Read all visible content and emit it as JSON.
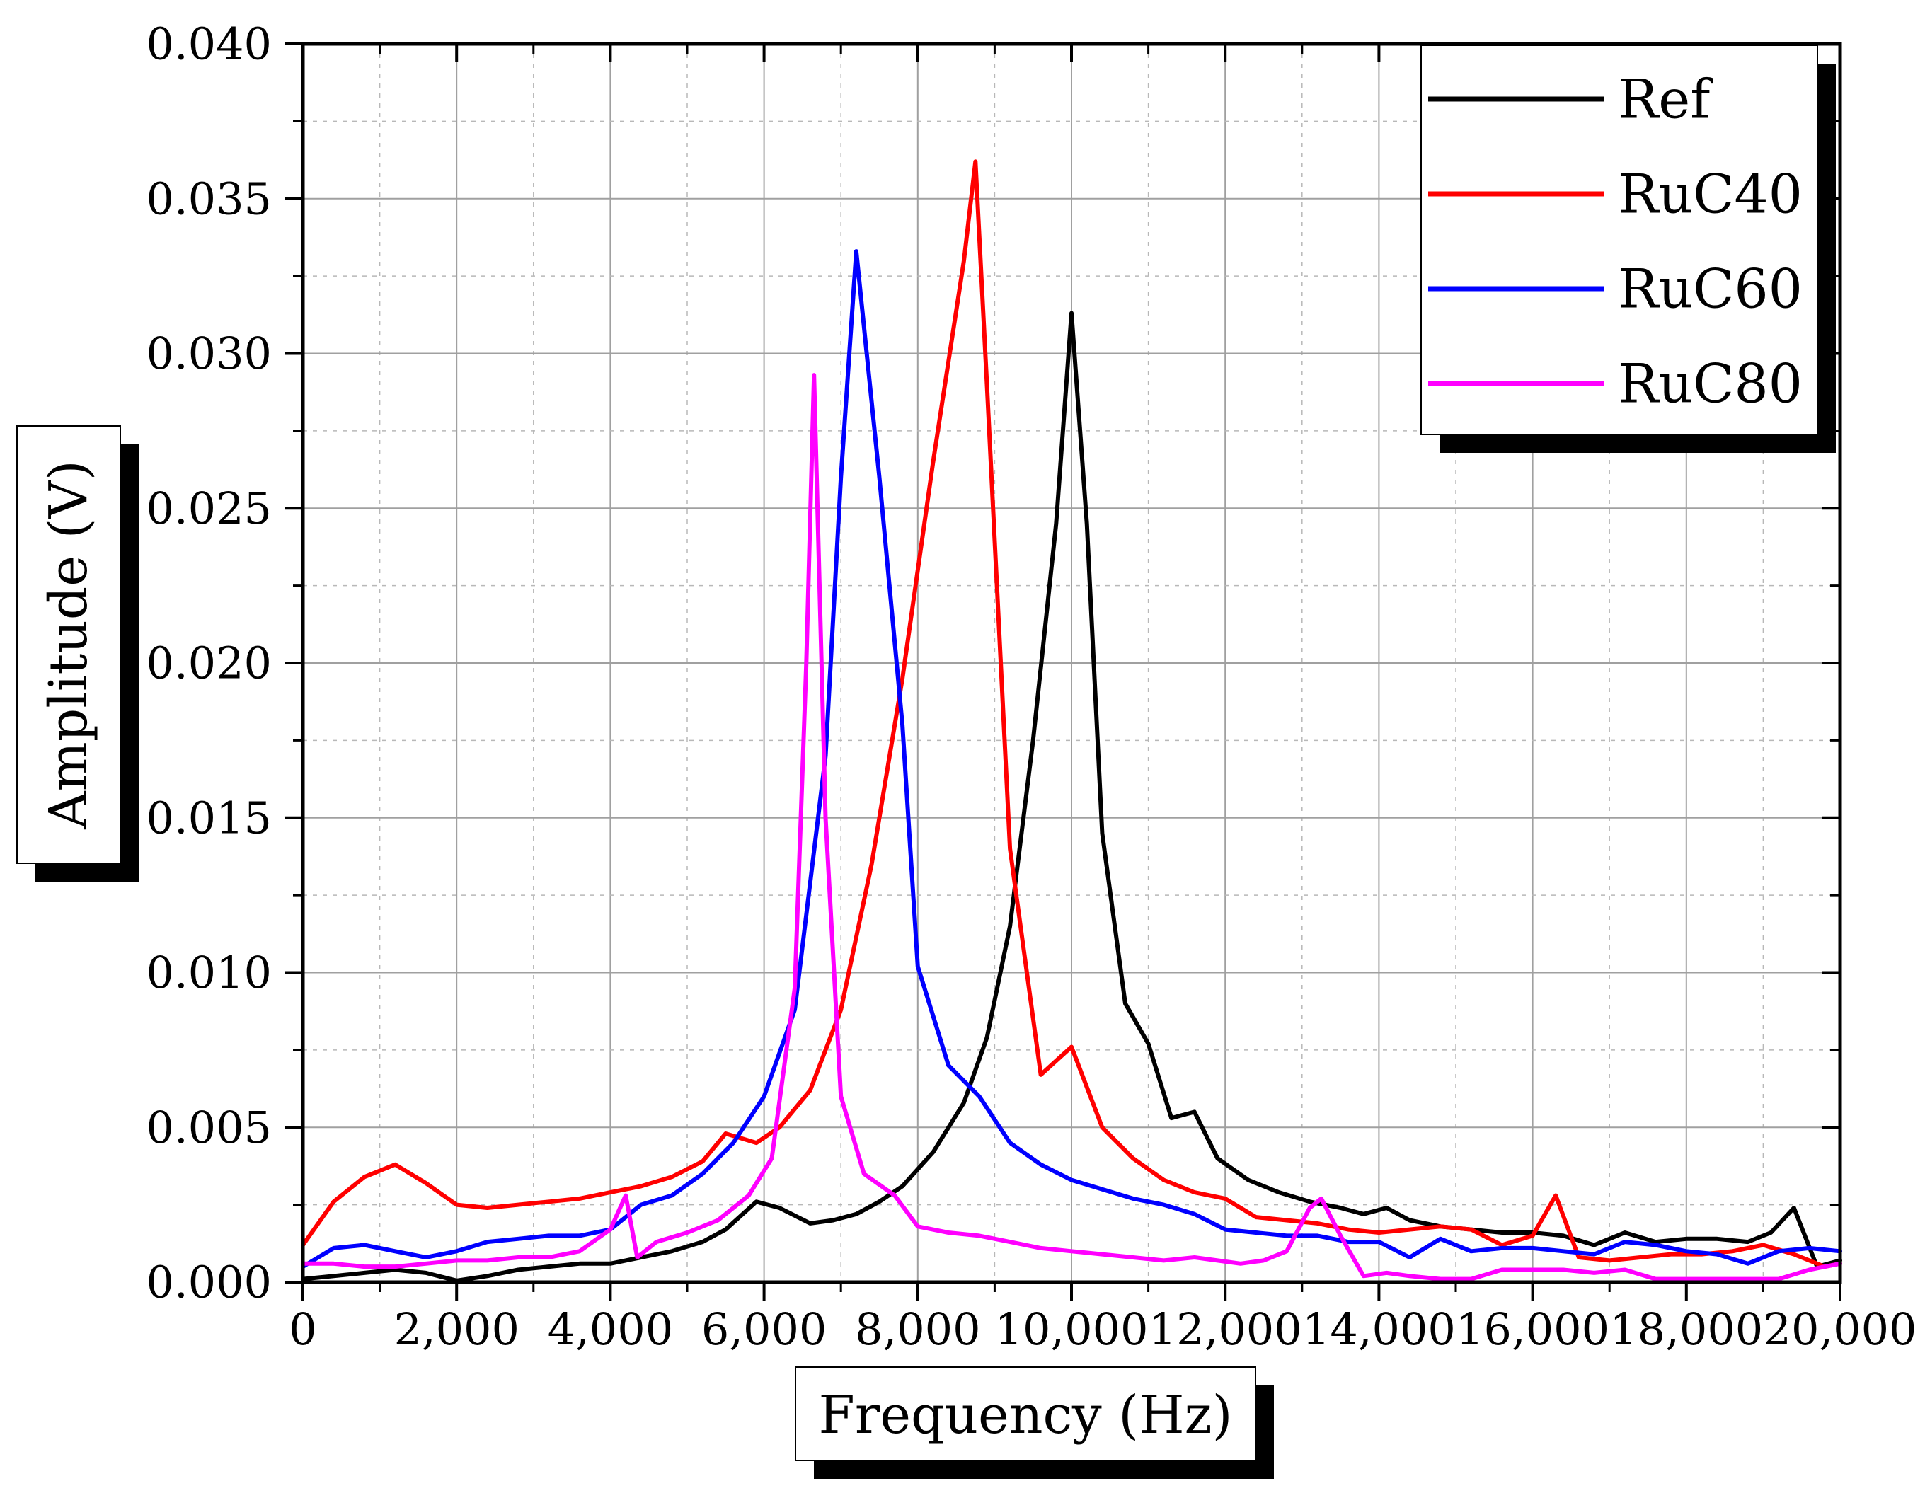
{
  "chart_data": {
    "type": "line",
    "title": "",
    "xlabel": "Frequency (Hz)",
    "ylabel": "Amplitude (V)",
    "xlim": [
      0,
      20000
    ],
    "ylim": [
      0,
      0.04
    ],
    "xticks": [
      {
        "value": 0,
        "label": "0"
      },
      {
        "value": 2000,
        "label": "2,000"
      },
      {
        "value": 4000,
        "label": "4,000"
      },
      {
        "value": 6000,
        "label": "6,000"
      },
      {
        "value": 8000,
        "label": "8,000"
      },
      {
        "value": 10000,
        "label": "10,000"
      },
      {
        "value": 12000,
        "label": "12,000"
      },
      {
        "value": 14000,
        "label": "14,000"
      },
      {
        "value": 16000,
        "label": "16,000"
      },
      {
        "value": 18000,
        "label": "18,000"
      },
      {
        "value": 20000,
        "label": "20,000"
      }
    ],
    "yticks": [
      {
        "value": 0,
        "label": "0.000"
      },
      {
        "value": 0.005,
        "label": "0.005"
      },
      {
        "value": 0.01,
        "label": "0.010"
      },
      {
        "value": 0.015,
        "label": "0.015"
      },
      {
        "value": 0.02,
        "label": "0.020"
      },
      {
        "value": 0.025,
        "label": "0.025"
      },
      {
        "value": 0.03,
        "label": "0.030"
      },
      {
        "value": 0.035,
        "label": "0.035"
      },
      {
        "value": 0.04,
        "label": "0.040"
      }
    ],
    "grid": true,
    "legend_position": "top-right",
    "series": [
      {
        "name": "Ref",
        "color": "#000000",
        "x": [
          0,
          400,
          800,
          1200,
          1600,
          2000,
          2400,
          2800,
          3200,
          3600,
          4000,
          4200,
          4400,
          4800,
          5200,
          5500,
          5900,
          6200,
          6600,
          6900,
          7200,
          7500,
          7800,
          8200,
          8600,
          8900,
          9200,
          9500,
          9800,
          10000,
          10200,
          10400,
          10700,
          11000,
          11300,
          11600,
          11900,
          12300,
          12700,
          13100,
          13500,
          13800,
          14100,
          14400,
          14800,
          15200,
          15600,
          16000,
          16400,
          16800,
          17200,
          17600,
          18000,
          18400,
          18800,
          19100,
          19400,
          19700,
          20000
        ],
        "y": [
          0.0001,
          0.0002,
          0.0003,
          0.0004,
          0.0003,
          5e-05,
          0.0002,
          0.0004,
          0.0005,
          0.0006,
          0.0006,
          0.0007,
          0.0008,
          0.001,
          0.0013,
          0.0017,
          0.0026,
          0.0024,
          0.0019,
          0.002,
          0.0022,
          0.0026,
          0.0031,
          0.0042,
          0.0058,
          0.0079,
          0.0115,
          0.0175,
          0.0245,
          0.0313,
          0.0245,
          0.0145,
          0.009,
          0.0077,
          0.0053,
          0.0055,
          0.004,
          0.0033,
          0.0029,
          0.0026,
          0.0024,
          0.0022,
          0.0024,
          0.002,
          0.0018,
          0.0017,
          0.0016,
          0.0016,
          0.0015,
          0.0012,
          0.0016,
          0.0013,
          0.0014,
          0.0014,
          0.0013,
          0.0016,
          0.0024,
          0.0005,
          0.0007
        ]
      },
      {
        "name": "RuC40",
        "color": "#ff0000",
        "x": [
          0,
          400,
          800,
          1200,
          1600,
          2000,
          2400,
          2800,
          3200,
          3600,
          4000,
          4400,
          4800,
          5200,
          5500,
          5900,
          6200,
          6600,
          7000,
          7400,
          7800,
          8200,
          8600,
          8750,
          8900,
          9200,
          9600,
          10000,
          10400,
          10800,
          11200,
          11600,
          12000,
          12400,
          12800,
          13200,
          13600,
          14000,
          14400,
          14800,
          15200,
          15600,
          16000,
          16300,
          16600,
          17000,
          17400,
          17800,
          18200,
          18600,
          19000,
          19400,
          19800,
          20000
        ],
        "y": [
          0.0012,
          0.0026,
          0.0034,
          0.0038,
          0.0032,
          0.0025,
          0.0024,
          0.0025,
          0.0026,
          0.0027,
          0.0029,
          0.0031,
          0.0034,
          0.0039,
          0.0048,
          0.0045,
          0.005,
          0.0062,
          0.0088,
          0.0135,
          0.0195,
          0.0265,
          0.033,
          0.0362,
          0.029,
          0.014,
          0.0067,
          0.0076,
          0.005,
          0.004,
          0.0033,
          0.0029,
          0.0027,
          0.0021,
          0.002,
          0.0019,
          0.0017,
          0.0016,
          0.0017,
          0.0018,
          0.0017,
          0.0012,
          0.0015,
          0.0028,
          0.0008,
          0.0007,
          0.0008,
          0.0009,
          0.0009,
          0.001,
          0.0012,
          0.0009,
          0.0005,
          0.0006
        ]
      },
      {
        "name": "RuC60",
        "color": "#0000ff",
        "x": [
          0,
          400,
          800,
          1200,
          1600,
          2000,
          2400,
          2800,
          3200,
          3600,
          4000,
          4400,
          4800,
          5200,
          5600,
          6000,
          6400,
          6800,
          7000,
          7200,
          7500,
          7800,
          8000,
          8400,
          8800,
          9200,
          9600,
          10000,
          10400,
          10800,
          11200,
          11600,
          12000,
          12400,
          12800,
          13200,
          13600,
          14000,
          14400,
          14800,
          15200,
          15600,
          16000,
          16400,
          16800,
          17200,
          17600,
          18000,
          18400,
          18800,
          19200,
          19600,
          20000
        ],
        "y": [
          0.0005,
          0.0011,
          0.0012,
          0.001,
          0.0008,
          0.001,
          0.0013,
          0.0014,
          0.0015,
          0.0015,
          0.0017,
          0.0025,
          0.0028,
          0.0035,
          0.0045,
          0.006,
          0.0088,
          0.017,
          0.026,
          0.0333,
          0.026,
          0.018,
          0.0102,
          0.007,
          0.006,
          0.0045,
          0.0038,
          0.0033,
          0.003,
          0.0027,
          0.0025,
          0.0022,
          0.0017,
          0.0016,
          0.0015,
          0.0015,
          0.0013,
          0.0013,
          0.0008,
          0.0014,
          0.001,
          0.0011,
          0.0011,
          0.001,
          0.0009,
          0.0013,
          0.0012,
          0.001,
          0.0009,
          0.0006,
          0.001,
          0.0011,
          0.001
        ]
      },
      {
        "name": "RuC80",
        "color": "#ff00ff",
        "x": [
          0,
          400,
          800,
          1200,
          1600,
          2000,
          2400,
          2800,
          3200,
          3600,
          4000,
          4200,
          4350,
          4600,
          5000,
          5400,
          5800,
          6100,
          6400,
          6550,
          6650,
          6800,
          7000,
          7300,
          7700,
          8000,
          8400,
          8800,
          9200,
          9600,
          10000,
          10400,
          10800,
          11200,
          11600,
          11900,
          12200,
          12500,
          12800,
          13100,
          13250,
          13500,
          13800,
          14100,
          14400,
          14800,
          15200,
          15600,
          16000,
          16400,
          16800,
          17200,
          17600,
          18000,
          18400,
          18800,
          19200,
          19600,
          20000
        ],
        "y": [
          0.0006,
          0.0006,
          0.0005,
          0.0005,
          0.0006,
          0.0007,
          0.0007,
          0.0008,
          0.0008,
          0.001,
          0.0017,
          0.0028,
          0.0008,
          0.0013,
          0.0016,
          0.002,
          0.0028,
          0.004,
          0.0095,
          0.02,
          0.0293,
          0.015,
          0.006,
          0.0035,
          0.0028,
          0.0018,
          0.0016,
          0.0015,
          0.0013,
          0.0011,
          0.001,
          0.0009,
          0.0008,
          0.0007,
          0.0008,
          0.0007,
          0.0006,
          0.0007,
          0.001,
          0.0024,
          0.0027,
          0.0015,
          0.0002,
          0.0003,
          0.0002,
          0.0001,
          0.0001,
          0.0004,
          0.0004,
          0.0004,
          0.0003,
          0.0004,
          0.0001,
          0.0001,
          0.0001,
          0.0001,
          0.0001,
          0.0004,
          0.0006
        ]
      }
    ]
  }
}
